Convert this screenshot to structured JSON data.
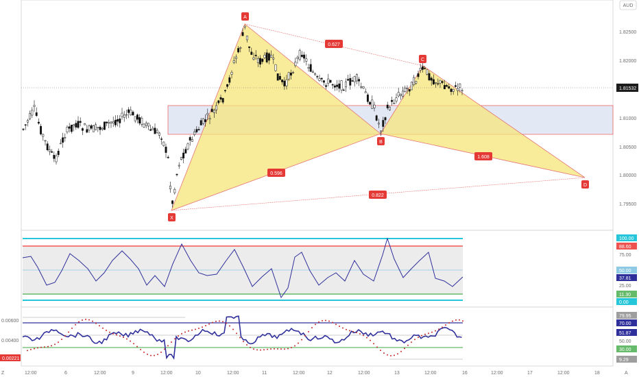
{
  "currency": "AUD",
  "price_axis": {
    "labels": [
      "1.82500",
      "1.82000",
      "1.81500",
      "1.81000",
      "1.80500",
      "1.80000",
      "1.79500"
    ],
    "current_price": "1.81532",
    "top_partial": "1.83000"
  },
  "pattern": {
    "points": {
      "X": "X",
      "A": "A",
      "B": "B",
      "C": "C",
      "D": "D"
    },
    "ratios": {
      "xab": "0.596",
      "abc": "0.627",
      "bcd": "1.608",
      "xad": "0.822"
    }
  },
  "osc1": {
    "labels": [
      "100.00",
      "88.60",
      "75.00",
      "50.00",
      "37.81",
      "25.00",
      "11.30",
      "0.00"
    ]
  },
  "osc2": {
    "left_labels": [
      "0.00600",
      "0.00400"
    ],
    "left_current": "0.00221",
    "right_labels": [
      "79.95",
      "70.00",
      "51.87",
      "50.00",
      "30.00",
      "9.29"
    ]
  },
  "time_axis": {
    "labels": [
      "12:00",
      "6",
      "12:00",
      "9",
      "12:00",
      "10",
      "12:00",
      "11",
      "12:00",
      "12",
      "12:00",
      "13",
      "12:00",
      "16",
      "12:00",
      "17",
      "12:00",
      "18"
    ],
    "corner_left": "Z",
    "corner_right": "A"
  },
  "colors": {
    "pattern_fill": "#f5e67a",
    "pattern_line": "#e57373",
    "label_red": "#e53935",
    "zone_fill": "#e3e8f5",
    "osc_line": "#2f2f9c",
    "cyan": "#26c6da",
    "red": "#ef5350",
    "green": "#66bb6a"
  }
}
